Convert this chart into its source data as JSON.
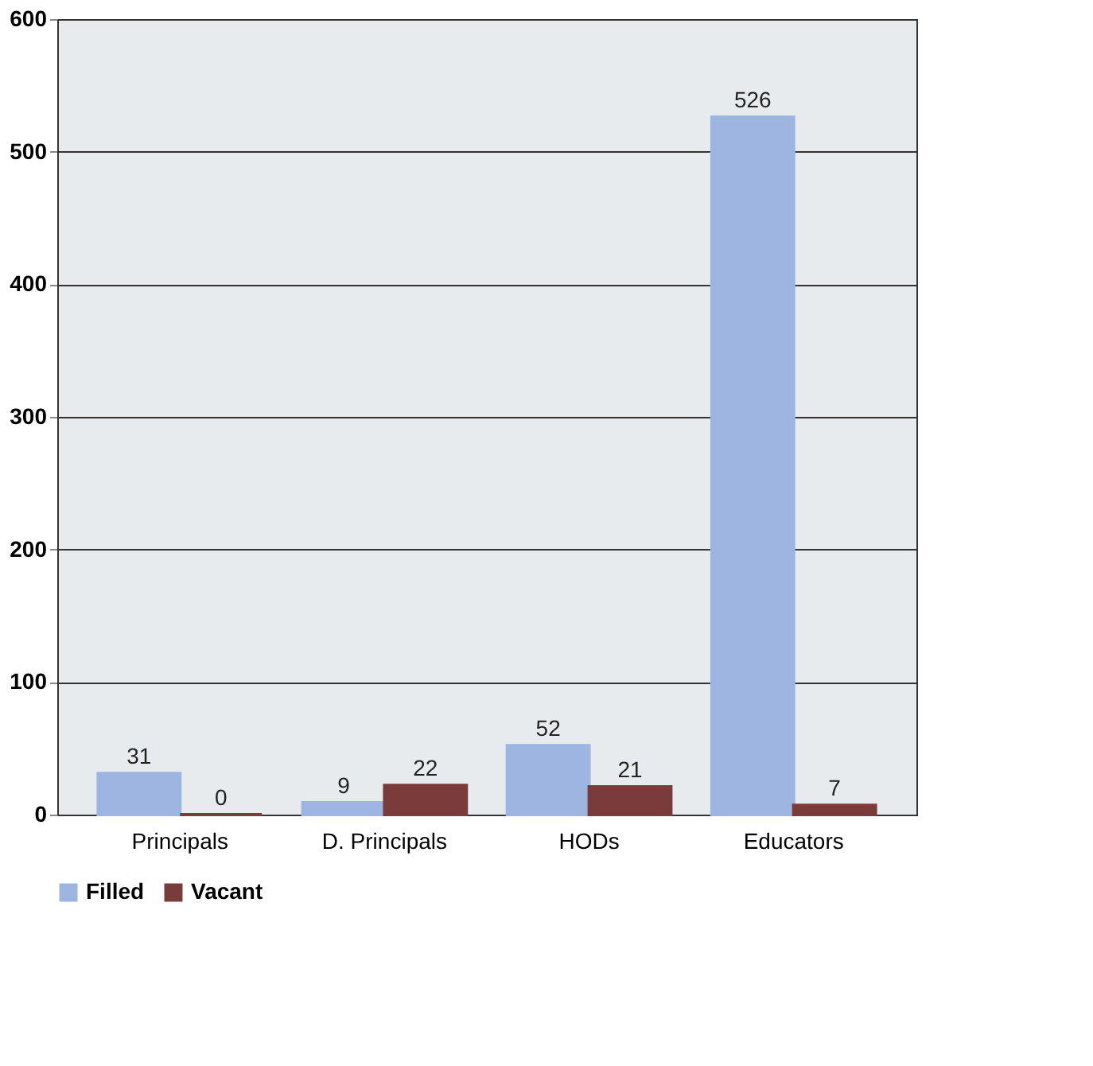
{
  "chart_data": {
    "type": "bar",
    "categories": [
      "Principals",
      "D. Principals",
      "HODs",
      "Educators"
    ],
    "series": [
      {
        "name": "Filled",
        "color": "#9db5e0",
        "values": [
          31,
          9,
          52,
          526
        ]
      },
      {
        "name": "Vacant",
        "color": "#7a3b3b",
        "values": [
          0,
          22,
          21,
          7
        ]
      }
    ],
    "ylim": [
      0,
      600
    ],
    "yticks": [
      0,
      100,
      200,
      300,
      400,
      500,
      600
    ],
    "grid": "y",
    "legend": "bottom",
    "data_labels": true
  }
}
